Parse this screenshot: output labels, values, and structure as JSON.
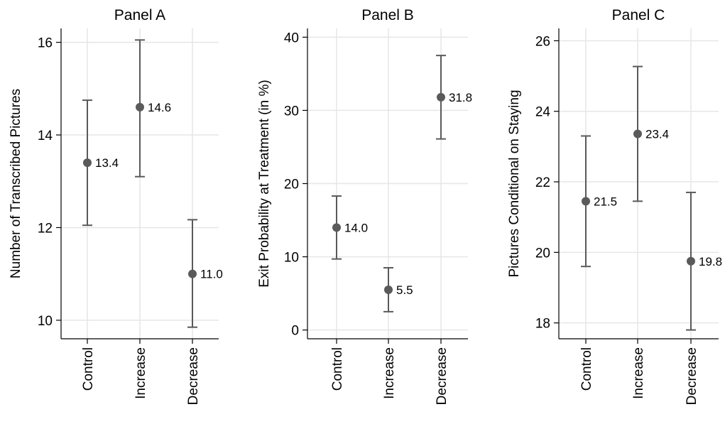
{
  "colors": {
    "marker": "#5a5a5a",
    "errorbar": "#5a5a5a",
    "grid": "#e6e6e6",
    "axis": "#000000",
    "text": "#000000"
  },
  "chart_data": [
    {
      "type": "scatter",
      "title": "Panel A",
      "ylabel": "Number of Transcribed Pictures",
      "categories": [
        "Control",
        "Increase",
        "Decrease"
      ],
      "values": [
        13.4,
        14.6,
        11.0
      ],
      "labels": [
        "13.4",
        "14.6",
        "11.0"
      ],
      "ci_low": [
        12.05,
        13.1,
        9.85
      ],
      "ci_high": [
        14.75,
        16.05,
        12.17
      ],
      "yticks": [
        10,
        12,
        14,
        16
      ],
      "ylim": [
        9.6,
        16.3
      ],
      "grid": true,
      "error_bars": true
    },
    {
      "type": "scatter",
      "title": "Panel B",
      "ylabel": "Exit Probability at Treatment (in %)",
      "categories": [
        "Control",
        "Increase",
        "Decrease"
      ],
      "values": [
        14.0,
        5.5,
        31.8
      ],
      "labels": [
        "14.0",
        "5.5",
        "31.8"
      ],
      "ci_low": [
        9.7,
        2.5,
        26.1
      ],
      "ci_high": [
        18.3,
        8.5,
        37.5
      ],
      "yticks": [
        0,
        10,
        20,
        30,
        40
      ],
      "ylim": [
        -1.2,
        41.2
      ],
      "grid": true,
      "error_bars": true
    },
    {
      "type": "scatter",
      "title": "Panel C",
      "ylabel": "Pictures Conditional on Staying",
      "categories": [
        "Control",
        "Increase",
        "Decrease"
      ],
      "values": [
        21.45,
        23.36,
        19.75
      ],
      "labels": [
        "21.5",
        "23.4",
        "19.8"
      ],
      "ci_low": [
        19.6,
        21.45,
        17.8
      ],
      "ci_high": [
        23.3,
        25.27,
        21.7
      ],
      "yticks": [
        18,
        20,
        22,
        24,
        26
      ],
      "ylim": [
        17.55,
        26.35
      ],
      "grid": true,
      "error_bars": true
    }
  ]
}
